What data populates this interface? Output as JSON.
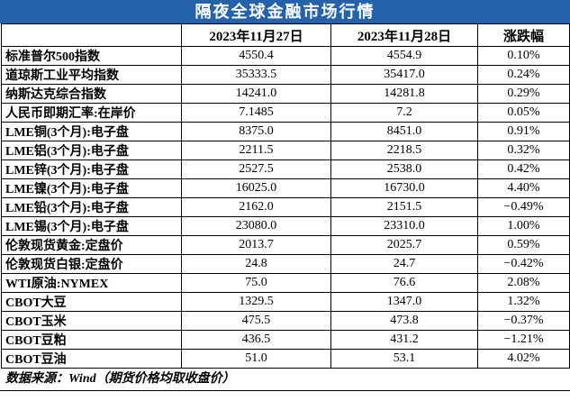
{
  "title": "隔夜全球金融市场行情",
  "table": {
    "header": [
      "2023年11月27日",
      "2023年11月28日",
      "涨跌幅"
    ],
    "rows": [
      [
        "标准普尔500指数",
        "4550.4",
        "4554.9",
        "0.10%"
      ],
      [
        "道琼斯工业平均指数",
        "35333.5",
        "35417.0",
        "0.24%"
      ],
      [
        "纳斯达克综合指数",
        "14241.0",
        "14281.8",
        "0.29%"
      ],
      [
        "人民币即期汇率:在岸价",
        "7.1485",
        "7.2",
        "0.05%"
      ],
      [
        "LME铜(3个月):电子盘",
        "8375.0",
        "8451.0",
        "0.91%"
      ],
      [
        "LME铝(3个月):电子盘",
        "2211.5",
        "2218.5",
        "0.32%"
      ],
      [
        "LME锌(3个月):电子盘",
        "2527.5",
        "2538.0",
        "0.42%"
      ],
      [
        "LME镍(3个月):电子盘",
        "16025.0",
        "16730.0",
        "4.40%"
      ],
      [
        "LME铅(3个月):电子盘",
        "2162.0",
        "2151.5",
        "−0.49%"
      ],
      [
        "LME锡(3个月):电子盘",
        "23080.0",
        "23310.0",
        "1.00%"
      ],
      [
        "伦敦现货黄金:定盘价",
        "2013.7",
        "2025.7",
        "0.59%"
      ],
      [
        "伦敦现货白银:定盘价",
        "24.8",
        "24.7",
        "−0.42%"
      ],
      [
        "WTI原油:NYMEX",
        "75.0",
        "76.6",
        "2.08%"
      ],
      [
        "CBOT大豆",
        "1329.5",
        "1347.0",
        "1.32%"
      ],
      [
        "CBOT玉米",
        "475.5",
        "473.8",
        "−0.37%"
      ],
      [
        "CBOT豆粕",
        "436.5",
        "431.2",
        "−1.21%"
      ],
      [
        "CBOT豆油",
        "51.0",
        "53.1",
        "4.02%"
      ]
    ]
  },
  "footer": "数据来源：Wind（期货价格均取收盘价）"
}
